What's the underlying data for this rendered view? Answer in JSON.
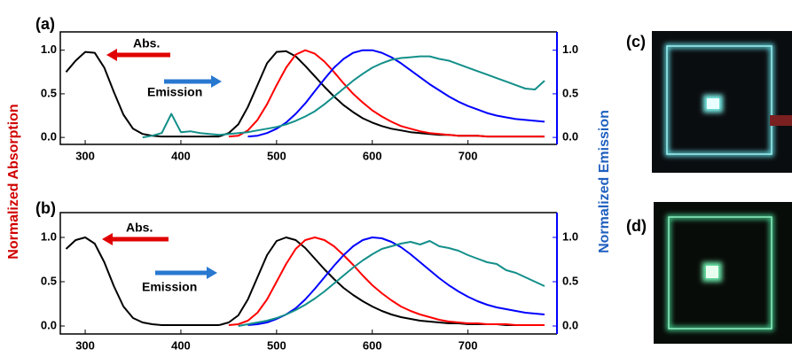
{
  "ylabel": "Normalized Absorption",
  "y2label": "Normalized Emission",
  "photos": [
    {
      "label": "(c)"
    },
    {
      "label": "(d)"
    }
  ],
  "chart_data": [
    {
      "type": "line",
      "label": "(a)",
      "annotations": [
        "Abs.",
        "Emission"
      ],
      "x": [
        280,
        290,
        300,
        310,
        320,
        330,
        340,
        350,
        360,
        370,
        380,
        390,
        400,
        410,
        420,
        430,
        440,
        450,
        460,
        470,
        480,
        490,
        500,
        510,
        520,
        530,
        540,
        550,
        560,
        570,
        580,
        590,
        600,
        610,
        620,
        630,
        640,
        650,
        660,
        670,
        680,
        690,
        700,
        710,
        720,
        730,
        740,
        750,
        760,
        770,
        780
      ],
      "xlim": [
        274,
        793
      ],
      "xticks": [
        300,
        400,
        500,
        600,
        700
      ],
      "ylim": [
        -0.08,
        1.21
      ],
      "yticks": [
        {
          "value": 0,
          "label": "0.0"
        },
        0.5,
        {
          "value": 1,
          "label": "1.0"
        }
      ],
      "y2lim": [
        -0.08,
        1.21
      ],
      "y2ticks": [
        {
          "value": 0,
          "label": "0.0"
        },
        0.5,
        {
          "value": 1,
          "label": "1.0"
        }
      ],
      "series": [
        {
          "color": "#000000",
          "values": [
            0.75,
            0.88,
            0.98,
            0.97,
            0.8,
            0.52,
            0.26,
            0.1,
            0.04,
            0.02,
            0.01,
            0.01,
            0.01,
            0.01,
            0.01,
            0.01,
            0.01,
            null,
            null,
            null,
            null,
            null,
            null,
            null,
            null,
            null,
            null,
            null,
            null,
            null,
            null,
            null,
            null,
            null,
            null,
            null,
            null,
            null,
            null,
            null,
            null,
            null,
            null,
            null,
            null,
            null,
            null,
            null,
            null,
            null,
            null
          ]
        },
        {
          "color": "#000000",
          "axis": "y2",
          "values": [
            null,
            null,
            null,
            null,
            null,
            null,
            null,
            null,
            null,
            null,
            null,
            null,
            null,
            null,
            null,
            null,
            0.01,
            0.05,
            0.15,
            0.35,
            0.6,
            0.85,
            0.98,
            0.99,
            0.93,
            0.82,
            0.7,
            0.58,
            0.47,
            0.37,
            0.29,
            0.22,
            0.17,
            0.13,
            0.1,
            0.08,
            0.06,
            0.05,
            0.04,
            0.03,
            0.03,
            0.02,
            0.02,
            0.02,
            0.01,
            0.01,
            0.01,
            0.01,
            0.01,
            0.01,
            0.01
          ]
        },
        {
          "color": "#ff0000",
          "axis": "y2",
          "values": [
            null,
            null,
            null,
            null,
            null,
            null,
            null,
            null,
            null,
            null,
            null,
            null,
            null,
            null,
            null,
            null,
            null,
            0.01,
            0.02,
            0.08,
            0.2,
            0.38,
            0.6,
            0.8,
            0.95,
            1.0,
            0.96,
            0.87,
            0.75,
            0.62,
            0.5,
            0.4,
            0.31,
            0.24,
            0.18,
            0.13,
            0.1,
            0.07,
            0.05,
            0.04,
            0.03,
            0.02,
            0.02,
            0.02,
            0.01,
            0.01,
            0.01,
            0.01,
            0.01,
            0.01,
            0.01
          ]
        },
        {
          "color": "#0000ff",
          "axis": "y2",
          "values": [
            null,
            null,
            null,
            null,
            null,
            null,
            null,
            null,
            null,
            null,
            null,
            null,
            null,
            null,
            null,
            null,
            null,
            null,
            null,
            0.01,
            0.02,
            0.05,
            0.1,
            0.17,
            0.27,
            0.39,
            0.53,
            0.67,
            0.8,
            0.9,
            0.97,
            1.0,
            1.0,
            0.97,
            0.92,
            0.85,
            0.77,
            0.69,
            0.61,
            0.54,
            0.47,
            0.41,
            0.36,
            0.32,
            0.28,
            0.25,
            0.23,
            0.21,
            0.2,
            0.19,
            0.18
          ]
        },
        {
          "color": "#138f8a",
          "axis": "y2",
          "values": [
            null,
            null,
            null,
            null,
            null,
            null,
            null,
            null,
            0.0,
            0.02,
            0.05,
            0.27,
            0.06,
            0.07,
            0.05,
            0.04,
            0.03,
            0.04,
            0.05,
            0.06,
            0.08,
            0.1,
            0.12,
            0.15,
            0.19,
            0.24,
            0.3,
            0.38,
            0.47,
            0.56,
            0.65,
            0.73,
            0.8,
            0.85,
            0.89,
            0.91,
            0.92,
            0.93,
            0.93,
            0.9,
            0.88,
            0.84,
            0.8,
            0.76,
            0.72,
            0.68,
            0.64,
            0.6,
            0.56,
            0.55,
            0.65
          ]
        }
      ]
    },
    {
      "type": "line",
      "label": "(b)",
      "annotations": [
        "Abs.",
        "Emission"
      ],
      "x": [
        280,
        290,
        300,
        310,
        320,
        330,
        340,
        350,
        360,
        370,
        380,
        390,
        400,
        410,
        420,
        430,
        440,
        450,
        460,
        470,
        480,
        490,
        500,
        510,
        520,
        530,
        540,
        550,
        560,
        570,
        580,
        590,
        600,
        610,
        620,
        630,
        640,
        650,
        660,
        670,
        680,
        690,
        700,
        710,
        720,
        730,
        740,
        750,
        760,
        770,
        780
      ],
      "xlim": [
        274,
        793
      ],
      "xticks": [
        300,
        400,
        500,
        600,
        700
      ],
      "ylim": [
        -0.09,
        1.28
      ],
      "yticks": [
        {
          "value": 0,
          "label": "0.0"
        },
        0.5,
        {
          "value": 1,
          "label": "1.0"
        }
      ],
      "y2lim": [
        -0.09,
        1.28
      ],
      "y2ticks": [
        {
          "value": 0,
          "label": "0.0"
        },
        0.5,
        {
          "value": 1,
          "label": "1.0"
        }
      ],
      "series": [
        {
          "color": "#000000",
          "values": [
            0.87,
            0.97,
            1.0,
            0.93,
            0.72,
            0.45,
            0.22,
            0.09,
            0.04,
            0.02,
            0.01,
            0.01,
            0.01,
            0.01,
            0.01,
            0.01,
            0.01,
            null,
            null,
            null,
            null,
            null,
            null,
            null,
            null,
            null,
            null,
            null,
            null,
            null,
            null,
            null,
            null,
            null,
            null,
            null,
            null,
            null,
            null,
            null,
            null,
            null,
            null,
            null,
            null,
            null,
            null,
            null,
            null,
            null,
            null
          ]
        },
        {
          "color": "#000000",
          "axis": "y2",
          "values": [
            null,
            null,
            null,
            null,
            null,
            null,
            null,
            null,
            null,
            null,
            null,
            null,
            null,
            null,
            null,
            null,
            0.01,
            0.04,
            0.12,
            0.3,
            0.55,
            0.8,
            0.96,
            1.0,
            0.97,
            0.88,
            0.76,
            0.64,
            0.53,
            0.43,
            0.35,
            0.28,
            0.22,
            0.17,
            0.13,
            0.1,
            0.08,
            0.06,
            0.05,
            0.04,
            0.03,
            0.03,
            0.02,
            0.02,
            0.02,
            0.02,
            0.01,
            0.01,
            0.01,
            0.01,
            0.01
          ]
        },
        {
          "color": "#ff0000",
          "axis": "y2",
          "values": [
            null,
            null,
            null,
            null,
            null,
            null,
            null,
            null,
            null,
            null,
            null,
            null,
            null,
            null,
            null,
            null,
            null,
            0.01,
            0.02,
            0.06,
            0.15,
            0.3,
            0.5,
            0.7,
            0.87,
            0.97,
            1.0,
            0.97,
            0.9,
            0.8,
            0.69,
            0.57,
            0.46,
            0.37,
            0.29,
            0.22,
            0.17,
            0.13,
            0.1,
            0.07,
            0.05,
            0.04,
            0.03,
            0.03,
            0.02,
            0.02,
            0.02,
            0.01,
            0.01,
            0.01,
            0.01
          ]
        },
        {
          "color": "#0000ff",
          "axis": "y2",
          "values": [
            null,
            null,
            null,
            null,
            null,
            null,
            null,
            null,
            null,
            null,
            null,
            null,
            null,
            null,
            null,
            null,
            null,
            null,
            null,
            0.01,
            0.02,
            0.04,
            0.08,
            0.13,
            0.2,
            0.3,
            0.42,
            0.55,
            0.68,
            0.8,
            0.9,
            0.97,
            1.0,
            0.99,
            0.95,
            0.89,
            0.81,
            0.72,
            0.63,
            0.54,
            0.46,
            0.39,
            0.33,
            0.28,
            0.24,
            0.21,
            0.19,
            0.17,
            0.15,
            0.14,
            0.13
          ]
        },
        {
          "color": "#138f8a",
          "axis": "y2",
          "values": [
            null,
            null,
            null,
            null,
            null,
            null,
            null,
            null,
            null,
            null,
            null,
            null,
            null,
            null,
            null,
            null,
            null,
            null,
            0.0,
            0.02,
            0.04,
            0.06,
            0.09,
            0.13,
            0.18,
            0.24,
            0.31,
            0.39,
            0.48,
            0.57,
            0.66,
            0.74,
            0.81,
            0.87,
            0.9,
            0.93,
            0.95,
            0.92,
            0.96,
            0.9,
            0.88,
            0.85,
            0.8,
            0.76,
            0.72,
            0.7,
            0.63,
            0.6,
            0.55,
            0.5,
            0.45
          ]
        }
      ]
    }
  ]
}
